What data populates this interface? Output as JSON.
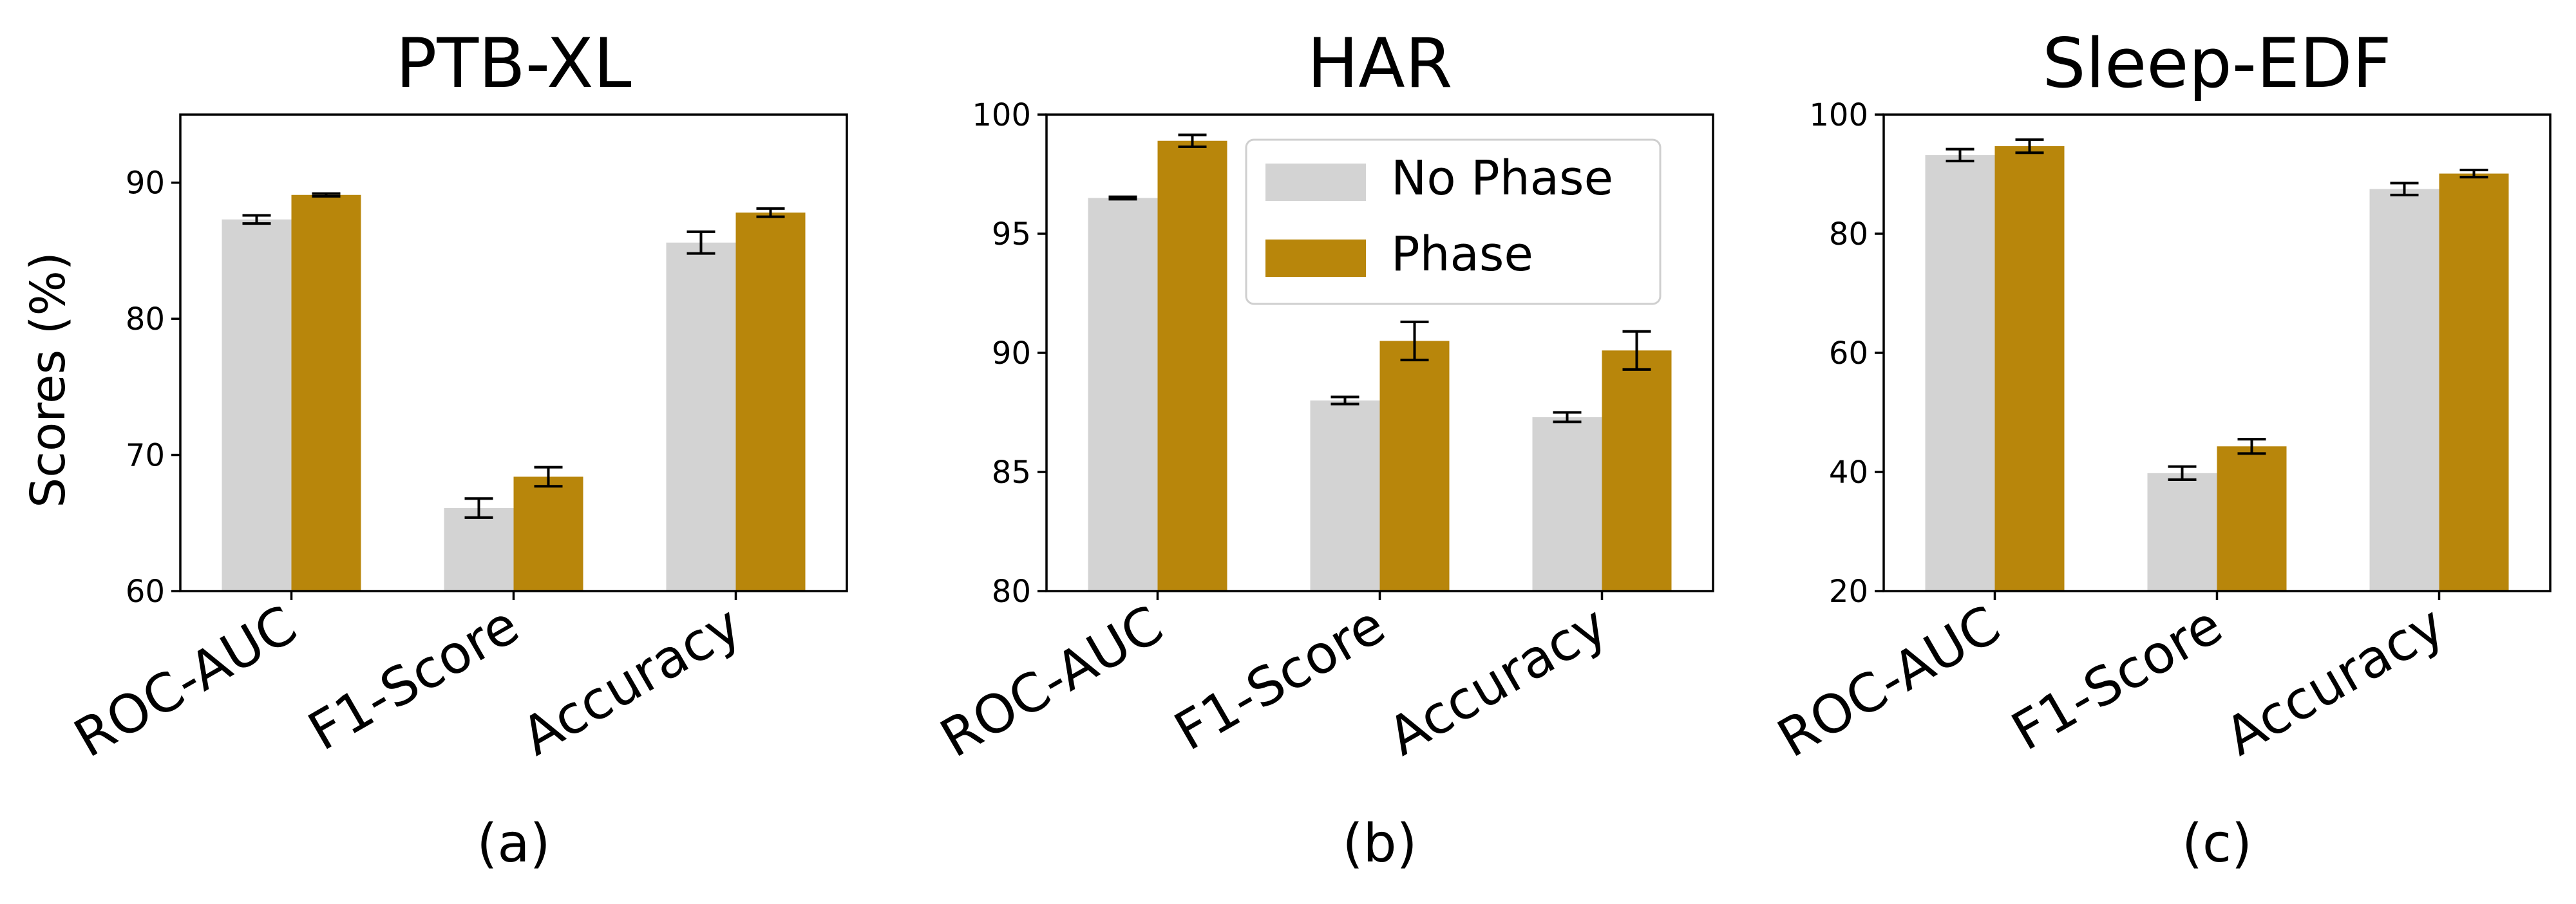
{
  "colors": {
    "no_phase": "#d3d3d3",
    "phase": "#b8860b",
    "error_bar": "#000000"
  },
  "shared_ylabel": "Scores (%)",
  "legend": {
    "entries": [
      "No Phase",
      "Phase"
    ],
    "placement": "top-right of panel (b)"
  },
  "chart_data": [
    {
      "type": "bar",
      "title": "PTB-XL",
      "subtitle": "(a)",
      "categories": [
        "ROC-AUC",
        "F1-Score",
        "Accuracy"
      ],
      "ylim": [
        60,
        95
      ],
      "yticks": [
        60,
        70,
        80,
        90
      ],
      "grid": false,
      "series": [
        {
          "name": "No Phase",
          "values": [
            87.3,
            66.1,
            85.6
          ],
          "errors": [
            0.3,
            0.7,
            0.8
          ]
        },
        {
          "name": "Phase",
          "values": [
            89.1,
            68.4,
            87.8
          ],
          "errors": [
            0.1,
            0.7,
            0.3
          ]
        }
      ]
    },
    {
      "type": "bar",
      "title": "HAR",
      "subtitle": "(b)",
      "categories": [
        "ROC-AUC",
        "F1-Score",
        "Accuracy"
      ],
      "ylim": [
        80,
        100
      ],
      "yticks": [
        80,
        85,
        90,
        95,
        100
      ],
      "grid": false,
      "series": [
        {
          "name": "No Phase",
          "values": [
            96.5,
            88.0,
            87.3
          ],
          "errors": [
            0.05,
            0.15,
            0.2
          ]
        },
        {
          "name": "Phase",
          "values": [
            98.9,
            90.5,
            90.1
          ],
          "errors": [
            0.25,
            0.8,
            0.8
          ]
        }
      ]
    },
    {
      "type": "bar",
      "title": "Sleep-EDF",
      "subtitle": "(c)",
      "categories": [
        "ROC-AUC",
        "F1-Score",
        "Accuracy"
      ],
      "ylim": [
        20,
        100
      ],
      "yticks": [
        20,
        40,
        60,
        80,
        100
      ],
      "grid": false,
      "series": [
        {
          "name": "No Phase",
          "values": [
            93.2,
            39.8,
            87.5
          ],
          "errors": [
            1.0,
            1.1,
            1.0
          ]
        },
        {
          "name": "Phase",
          "values": [
            94.7,
            44.3,
            90.1
          ],
          "errors": [
            1.1,
            1.2,
            0.6
          ]
        }
      ]
    }
  ]
}
